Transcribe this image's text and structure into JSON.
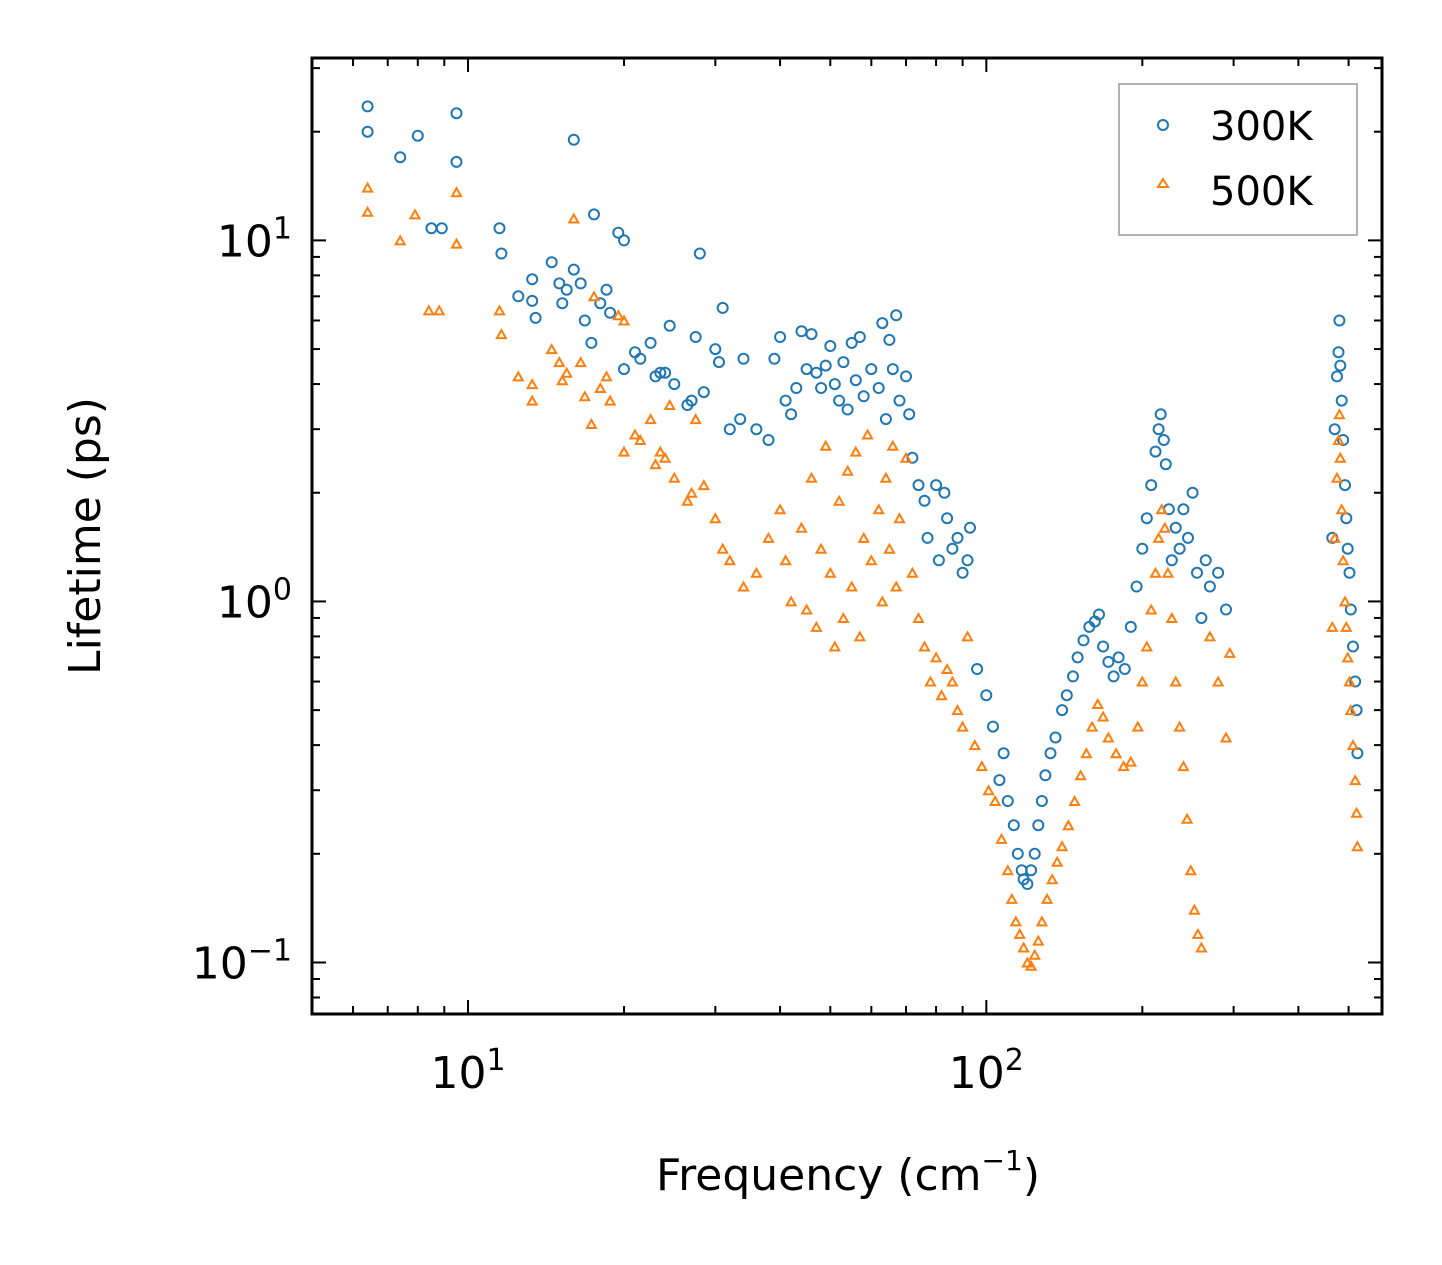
{
  "chart_data": {
    "type": "scatter",
    "title": "",
    "xlabel": "Frequency (cm",
    "xlabel_sup": "−1",
    "xlabel_tail": ")",
    "ylabel": "Lifetime (ps)",
    "xscale": "log",
    "yscale": "log",
    "xlim": [
      5,
      580
    ],
    "ylim": [
      0.072,
      32
    ],
    "x_ticks": [
      {
        "base": "10",
        "exp": "1"
      },
      {
        "base": "10",
        "exp": "2"
      }
    ],
    "y_ticks": [
      {
        "base": "10",
        "exp": "−1"
      },
      {
        "base": "10",
        "exp": "0"
      },
      {
        "base": "10",
        "exp": "1"
      }
    ],
    "legend": {
      "position": "top-right",
      "entries": [
        "300K",
        "500K"
      ]
    },
    "grid": false,
    "series": [
      {
        "name": "300K",
        "color": "#1f77b4",
        "marker": "circle",
        "points": [
          [
            6.4,
            23.5
          ],
          [
            6.4,
            20
          ],
          [
            7.4,
            17
          ],
          [
            8,
            19.5
          ],
          [
            8.5,
            10.8
          ],
          [
            8.9,
            10.8
          ],
          [
            9.5,
            22.5
          ],
          [
            9.5,
            16.5
          ],
          [
            11.5,
            10.8
          ],
          [
            11.6,
            9.2
          ],
          [
            12.5,
            7
          ],
          [
            13.3,
            7.8
          ],
          [
            13.3,
            6.8
          ],
          [
            13.5,
            6.1
          ],
          [
            14.5,
            8.7
          ],
          [
            15,
            7.6
          ],
          [
            15.2,
            6.7
          ],
          [
            15.5,
            7.3
          ],
          [
            16,
            19
          ],
          [
            16,
            8.3
          ],
          [
            16.5,
            7.6
          ],
          [
            16.8,
            6
          ],
          [
            17.3,
            5.2
          ],
          [
            17.5,
            11.8
          ],
          [
            18,
            6.7
          ],
          [
            18.5,
            7.3
          ],
          [
            18.8,
            6.3
          ],
          [
            19.5,
            10.5
          ],
          [
            20,
            10
          ],
          [
            20,
            4.4
          ],
          [
            21,
            4.9
          ],
          [
            21.5,
            4.7
          ],
          [
            22.5,
            5.2
          ],
          [
            23,
            4.2
          ],
          [
            23.5,
            4.3
          ],
          [
            24,
            4.3
          ],
          [
            24.5,
            5.8
          ],
          [
            25,
            4
          ],
          [
            26.5,
            3.5
          ],
          [
            27,
            3.6
          ],
          [
            27.5,
            5.4
          ],
          [
            28,
            9.2
          ],
          [
            28.5,
            3.8
          ],
          [
            30,
            5
          ],
          [
            30.5,
            4.6
          ],
          [
            31,
            6.5
          ],
          [
            32,
            3
          ],
          [
            33.5,
            3.2
          ],
          [
            34,
            4.7
          ],
          [
            36,
            3
          ],
          [
            38,
            2.8
          ],
          [
            39,
            4.7
          ],
          [
            40,
            5.4
          ],
          [
            41,
            3.6
          ],
          [
            42,
            3.3
          ],
          [
            43,
            3.9
          ],
          [
            44,
            5.6
          ],
          [
            45,
            4.4
          ],
          [
            46,
            5.5
          ],
          [
            47,
            4.3
          ],
          [
            48,
            3.9
          ],
          [
            49,
            4.5
          ],
          [
            50,
            5.1
          ],
          [
            51,
            4
          ],
          [
            52,
            3.6
          ],
          [
            53,
            4.6
          ],
          [
            54,
            3.4
          ],
          [
            55,
            5.2
          ],
          [
            56,
            4.1
          ],
          [
            57,
            5.4
          ],
          [
            58,
            3.7
          ],
          [
            60,
            4.4
          ],
          [
            62,
            3.9
          ],
          [
            63,
            5.9
          ],
          [
            64,
            3.2
          ],
          [
            65,
            5.3
          ],
          [
            66,
            4.4
          ],
          [
            67,
            6.2
          ],
          [
            68,
            3.6
          ],
          [
            70,
            4.2
          ],
          [
            71,
            3.3
          ],
          [
            72,
            2.5
          ],
          [
            74,
            2.1
          ],
          [
            76,
            1.9
          ],
          [
            77,
            1.5
          ],
          [
            80,
            2.1
          ],
          [
            81,
            1.3
          ],
          [
            83,
            2
          ],
          [
            84,
            1.7
          ],
          [
            86,
            1.4
          ],
          [
            88,
            1.5
          ],
          [
            90,
            1.2
          ],
          [
            92,
            1.3
          ],
          [
            93,
            1.6
          ],
          [
            96,
            0.65
          ],
          [
            100,
            0.55
          ],
          [
            103,
            0.45
          ],
          [
            106,
            0.32
          ],
          [
            108,
            0.38
          ],
          [
            110,
            0.28
          ],
          [
            113,
            0.24
          ],
          [
            115,
            0.2
          ],
          [
            117,
            0.18
          ],
          [
            118,
            0.17
          ],
          [
            120,
            0.165
          ],
          [
            122,
            0.18
          ],
          [
            124,
            0.2
          ],
          [
            126,
            0.24
          ],
          [
            128,
            0.28
          ],
          [
            130,
            0.33
          ],
          [
            133,
            0.38
          ],
          [
            136,
            0.42
          ],
          [
            140,
            0.5
          ],
          [
            143,
            0.55
          ],
          [
            147,
            0.62
          ],
          [
            150,
            0.7
          ],
          [
            154,
            0.78
          ],
          [
            158,
            0.85
          ],
          [
            162,
            0.88
          ],
          [
            165,
            0.92
          ],
          [
            168,
            0.75
          ],
          [
            172,
            0.68
          ],
          [
            176,
            0.62
          ],
          [
            180,
            0.7
          ],
          [
            185,
            0.65
          ],
          [
            190,
            0.85
          ],
          [
            195,
            1.1
          ],
          [
            200,
            1.4
          ],
          [
            204,
            1.7
          ],
          [
            208,
            2.1
          ],
          [
            212,
            2.6
          ],
          [
            215,
            3
          ],
          [
            217,
            3.3
          ],
          [
            220,
            2.8
          ],
          [
            222,
            2.4
          ],
          [
            225,
            1.8
          ],
          [
            228,
            1.3
          ],
          [
            232,
            1.6
          ],
          [
            236,
            1.4
          ],
          [
            240,
            1.8
          ],
          [
            245,
            1.5
          ],
          [
            250,
            2
          ],
          [
            255,
            1.2
          ],
          [
            260,
            0.9
          ],
          [
            265,
            1.3
          ],
          [
            270,
            1.1
          ],
          [
            280,
            1.2
          ],
          [
            290,
            0.95
          ],
          [
            465,
            1.5
          ],
          [
            470,
            3
          ],
          [
            475,
            4.2
          ],
          [
            478,
            4.9
          ],
          [
            480,
            6
          ],
          [
            482,
            4.5
          ],
          [
            485,
            3.6
          ],
          [
            488,
            2.8
          ],
          [
            492,
            2.1
          ],
          [
            495,
            1.7
          ],
          [
            498,
            1.4
          ],
          [
            502,
            1.2
          ],
          [
            505,
            0.95
          ],
          [
            510,
            0.75
          ],
          [
            515,
            0.6
          ],
          [
            518,
            0.5
          ],
          [
            520,
            0.38
          ]
        ]
      },
      {
        "name": "500K",
        "color": "#ff7f0e",
        "marker": "triangle",
        "points": [
          [
            6.4,
            14
          ],
          [
            6.4,
            12
          ],
          [
            7.4,
            10
          ],
          [
            7.9,
            11.8
          ],
          [
            8.4,
            6.4
          ],
          [
            8.8,
            6.4
          ],
          [
            9.5,
            13.6
          ],
          [
            9.5,
            9.8
          ],
          [
            11.5,
            6.4
          ],
          [
            11.6,
            5.5
          ],
          [
            12.5,
            4.2
          ],
          [
            13.3,
            4
          ],
          [
            13.3,
            3.6
          ],
          [
            14.5,
            5
          ],
          [
            15,
            4.6
          ],
          [
            15.2,
            4.1
          ],
          [
            15.5,
            4.3
          ],
          [
            16,
            11.5
          ],
          [
            16.5,
            4.6
          ],
          [
            16.8,
            3.7
          ],
          [
            17.3,
            3.1
          ],
          [
            17.5,
            7
          ],
          [
            18,
            3.9
          ],
          [
            18.5,
            4.2
          ],
          [
            18.8,
            3.6
          ],
          [
            19.5,
            6.2
          ],
          [
            20,
            6
          ],
          [
            20,
            2.6
          ],
          [
            21,
            2.9
          ],
          [
            21.5,
            2.8
          ],
          [
            22.5,
            3.2
          ],
          [
            23,
            2.4
          ],
          [
            23.5,
            2.6
          ],
          [
            24,
            2.5
          ],
          [
            24.5,
            3.5
          ],
          [
            25,
            2.2
          ],
          [
            26.5,
            1.9
          ],
          [
            27,
            2
          ],
          [
            27.5,
            3.2
          ],
          [
            28.5,
            2.1
          ],
          [
            30,
            1.7
          ],
          [
            31,
            1.4
          ],
          [
            32,
            1.3
          ],
          [
            34,
            1.1
          ],
          [
            36,
            1.2
          ],
          [
            38,
            1.5
          ],
          [
            40,
            1.8
          ],
          [
            41,
            1.3
          ],
          [
            42,
            1
          ],
          [
            44,
            1.6
          ],
          [
            45,
            0.95
          ],
          [
            46,
            2.2
          ],
          [
            47,
            0.85
          ],
          [
            48,
            1.4
          ],
          [
            49,
            2.7
          ],
          [
            50,
            1.2
          ],
          [
            51,
            0.75
          ],
          [
            52,
            1.9
          ],
          [
            53,
            0.9
          ],
          [
            54,
            2.3
          ],
          [
            55,
            1.1
          ],
          [
            56,
            2.6
          ],
          [
            57,
            0.8
          ],
          [
            58,
            1.5
          ],
          [
            59,
            2.9
          ],
          [
            60,
            1.3
          ],
          [
            62,
            1.8
          ],
          [
            63,
            1
          ],
          [
            64,
            2.2
          ],
          [
            65,
            1.4
          ],
          [
            66,
            2.7
          ],
          [
            67,
            1.1
          ],
          [
            68,
            1.7
          ],
          [
            70,
            2.5
          ],
          [
            72,
            1.2
          ],
          [
            74,
            0.9
          ],
          [
            76,
            0.75
          ],
          [
            78,
            0.6
          ],
          [
            80,
            0.7
          ],
          [
            82,
            0.55
          ],
          [
            84,
            0.65
          ],
          [
            86,
            0.6
          ],
          [
            88,
            0.5
          ],
          [
            90,
            0.45
          ],
          [
            92,
            0.8
          ],
          [
            95,
            0.4
          ],
          [
            98,
            0.35
          ],
          [
            101,
            0.3
          ],
          [
            104,
            0.28
          ],
          [
            107,
            0.22
          ],
          [
            110,
            0.18
          ],
          [
            112,
            0.15
          ],
          [
            114,
            0.13
          ],
          [
            116,
            0.12
          ],
          [
            118,
            0.11
          ],
          [
            120,
            0.1
          ],
          [
            122,
            0.098
          ],
          [
            124,
            0.105
          ],
          [
            126,
            0.115
          ],
          [
            128,
            0.13
          ],
          [
            131,
            0.15
          ],
          [
            134,
            0.17
          ],
          [
            137,
            0.19
          ],
          [
            140,
            0.21
          ],
          [
            144,
            0.24
          ],
          [
            148,
            0.28
          ],
          [
            152,
            0.33
          ],
          [
            156,
            0.38
          ],
          [
            160,
            0.45
          ],
          [
            164,
            0.52
          ],
          [
            168,
            0.48
          ],
          [
            172,
            0.42
          ],
          [
            178,
            0.38
          ],
          [
            184,
            0.35
          ],
          [
            190,
            0.36
          ],
          [
            196,
            0.45
          ],
          [
            200,
            0.6
          ],
          [
            204,
            0.75
          ],
          [
            208,
            0.95
          ],
          [
            212,
            1.2
          ],
          [
            215,
            1.5
          ],
          [
            218,
            1.8
          ],
          [
            221,
            1.6
          ],
          [
            224,
            1.2
          ],
          [
            228,
            0.9
          ],
          [
            232,
            0.6
          ],
          [
            236,
            0.45
          ],
          [
            240,
            0.35
          ],
          [
            244,
            0.25
          ],
          [
            248,
            0.18
          ],
          [
            252,
            0.14
          ],
          [
            256,
            0.12
          ],
          [
            260,
            0.11
          ],
          [
            270,
            0.8
          ],
          [
            280,
            0.6
          ],
          [
            290,
            0.42
          ],
          [
            295,
            0.72
          ],
          [
            465,
            0.85
          ],
          [
            470,
            1.5
          ],
          [
            475,
            2.2
          ],
          [
            478,
            2.8
          ],
          [
            480,
            3.3
          ],
          [
            482,
            2.5
          ],
          [
            485,
            1.8
          ],
          [
            488,
            1.3
          ],
          [
            492,
            1
          ],
          [
            495,
            0.85
          ],
          [
            498,
            0.7
          ],
          [
            502,
            0.6
          ],
          [
            505,
            0.5
          ],
          [
            510,
            0.4
          ],
          [
            515,
            0.32
          ],
          [
            518,
            0.26
          ],
          [
            520,
            0.21
          ]
        ]
      }
    ]
  }
}
